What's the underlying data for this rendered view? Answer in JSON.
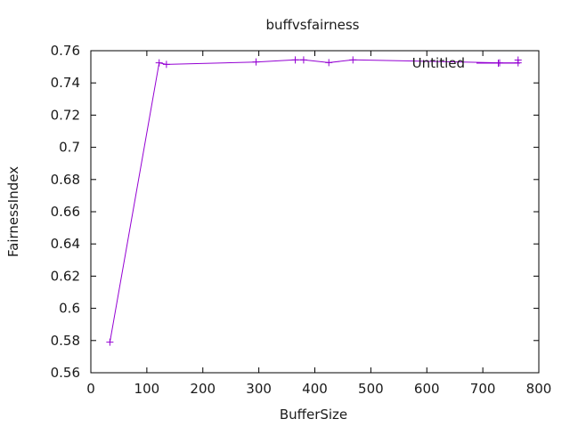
{
  "chart_data": {
    "type": "line",
    "title": "buffvsfairness",
    "xlabel": "BufferSize",
    "ylabel": "FairnessIndex",
    "xlim": [
      0,
      800
    ],
    "ylim": [
      0.56,
      0.76
    ],
    "xticks": [
      "0",
      "100",
      "200",
      "300",
      "400",
      "500",
      "600",
      "700",
      "800"
    ],
    "yticks": [
      "0.56",
      "0.58",
      "0.6",
      "0.62",
      "0.64",
      "0.66",
      "0.68",
      "0.7",
      "0.72",
      "0.74",
      "0.76"
    ],
    "grid": false,
    "legend_position": "top-right",
    "series": [
      {
        "name": "Untitled",
        "color": "#9400d3",
        "marker": "plus",
        "points": [
          [
            34,
            0.579
          ],
          [
            122,
            0.7525
          ],
          [
            135,
            0.7515
          ],
          [
            295,
            0.753
          ],
          [
            365,
            0.7543
          ],
          [
            380,
            0.7543
          ],
          [
            425,
            0.7526
          ],
          [
            468,
            0.7543
          ],
          [
            730,
            0.7525
          ],
          [
            763,
            0.7525
          ],
          [
            763,
            0.7542
          ]
        ]
      }
    ]
  }
}
